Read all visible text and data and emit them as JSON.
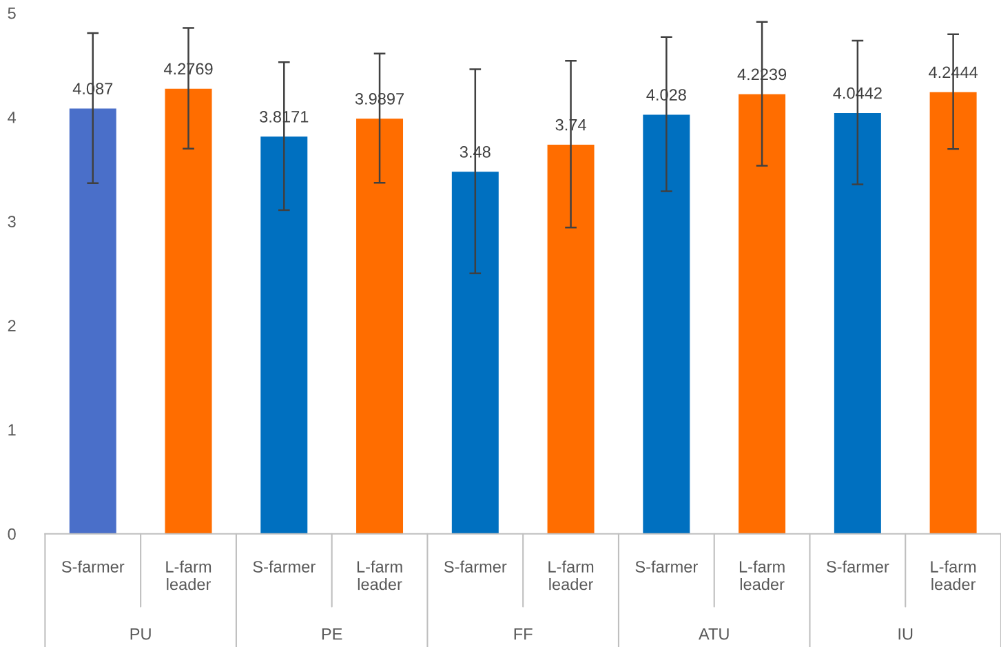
{
  "chart_data": {
    "type": "bar",
    "categories": [
      "S-farmer",
      "L-farm\nleader",
      "S-farmer",
      "L-farm\nleader",
      "S-farmer",
      "L-farm\nleader",
      "S-farmer",
      "L-farm\nleader",
      "S-farmer",
      "L-farm\nleader"
    ],
    "values": [
      4.087,
      4.2769,
      3.8171,
      3.9897,
      3.48,
      3.74,
      4.028,
      4.2239,
      4.0442,
      4.2444
    ],
    "errors": [
      0.72,
      0.58,
      0.71,
      0.62,
      0.98,
      0.8,
      0.74,
      0.69,
      0.69,
      0.55
    ],
    "colors": [
      "#4a6fc9",
      "#ff6d00",
      "#0070c0",
      "#ff6d00",
      "#0070c0",
      "#ff6d00",
      "#0070c0",
      "#ff6d00",
      "#0070c0",
      "#ff6d00"
    ],
    "data_labels": true,
    "annotations": [
      "PU",
      "PE",
      "FF",
      "ATU",
      "IU"
    ],
    "ylim": [
      0,
      5
    ],
    "yticks": [
      0,
      1,
      2,
      3,
      4,
      5
    ],
    "grid": false,
    "legend": false
  }
}
